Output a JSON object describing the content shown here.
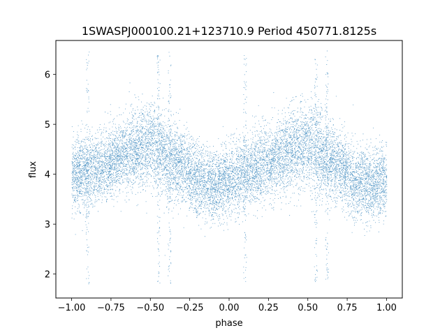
{
  "chart_data": {
    "type": "scatter",
    "title": "1SWASPJ000100.21+123710.9 Period 450771.8125s",
    "xlabel": "phase",
    "ylabel": "flux",
    "xlim": [
      -1.1,
      1.1
    ],
    "ylim": [
      1.52,
      6.68
    ],
    "x_ticks": [
      -1.0,
      -0.75,
      -0.5,
      -0.25,
      0.0,
      0.25,
      0.5,
      0.75,
      1.0
    ],
    "x_tick_labels": [
      "−1.00",
      "−0.75",
      "−0.50",
      "−0.25",
      "0.00",
      "0.25",
      "0.50",
      "0.75",
      "1.00"
    ],
    "y_ticks": [
      2,
      3,
      4,
      5,
      6
    ],
    "y_tick_labels": [
      "2",
      "3",
      "4",
      "5",
      "6"
    ],
    "grid": false,
    "legend": "none",
    "point_color": "#1f77b4",
    "series": [
      {
        "phase_flux_profile": {
          "phase": [
            -1.0,
            -0.9,
            -0.8,
            -0.7,
            -0.6,
            -0.5,
            -0.45,
            -0.4,
            -0.3,
            -0.2,
            -0.1,
            0.0,
            0.1,
            0.2,
            0.3,
            0.4,
            0.5,
            0.55,
            0.6,
            0.7,
            0.8,
            0.9,
            1.0
          ],
          "mean_flux": [
            4.0,
            4.05,
            4.15,
            4.35,
            4.5,
            4.6,
            4.5,
            4.3,
            4.15,
            3.85,
            3.75,
            3.9,
            4.0,
            4.15,
            4.35,
            4.5,
            4.6,
            4.5,
            4.3,
            4.15,
            3.85,
            3.75,
            3.9
          ],
          "scatter_sigma": [
            0.35,
            0.35,
            0.35,
            0.35,
            0.4,
            0.4,
            0.45,
            0.4,
            0.35,
            0.35,
            0.35,
            0.35,
            0.35,
            0.35,
            0.35,
            0.4,
            0.4,
            0.45,
            0.4,
            0.35,
            0.35,
            0.35,
            0.35
          ]
        },
        "outlier_streak_phases": [
          -0.9,
          -0.45,
          -0.38,
          0.1,
          0.55,
          0.62
        ],
        "approx_point_count": 14000
      }
    ]
  }
}
